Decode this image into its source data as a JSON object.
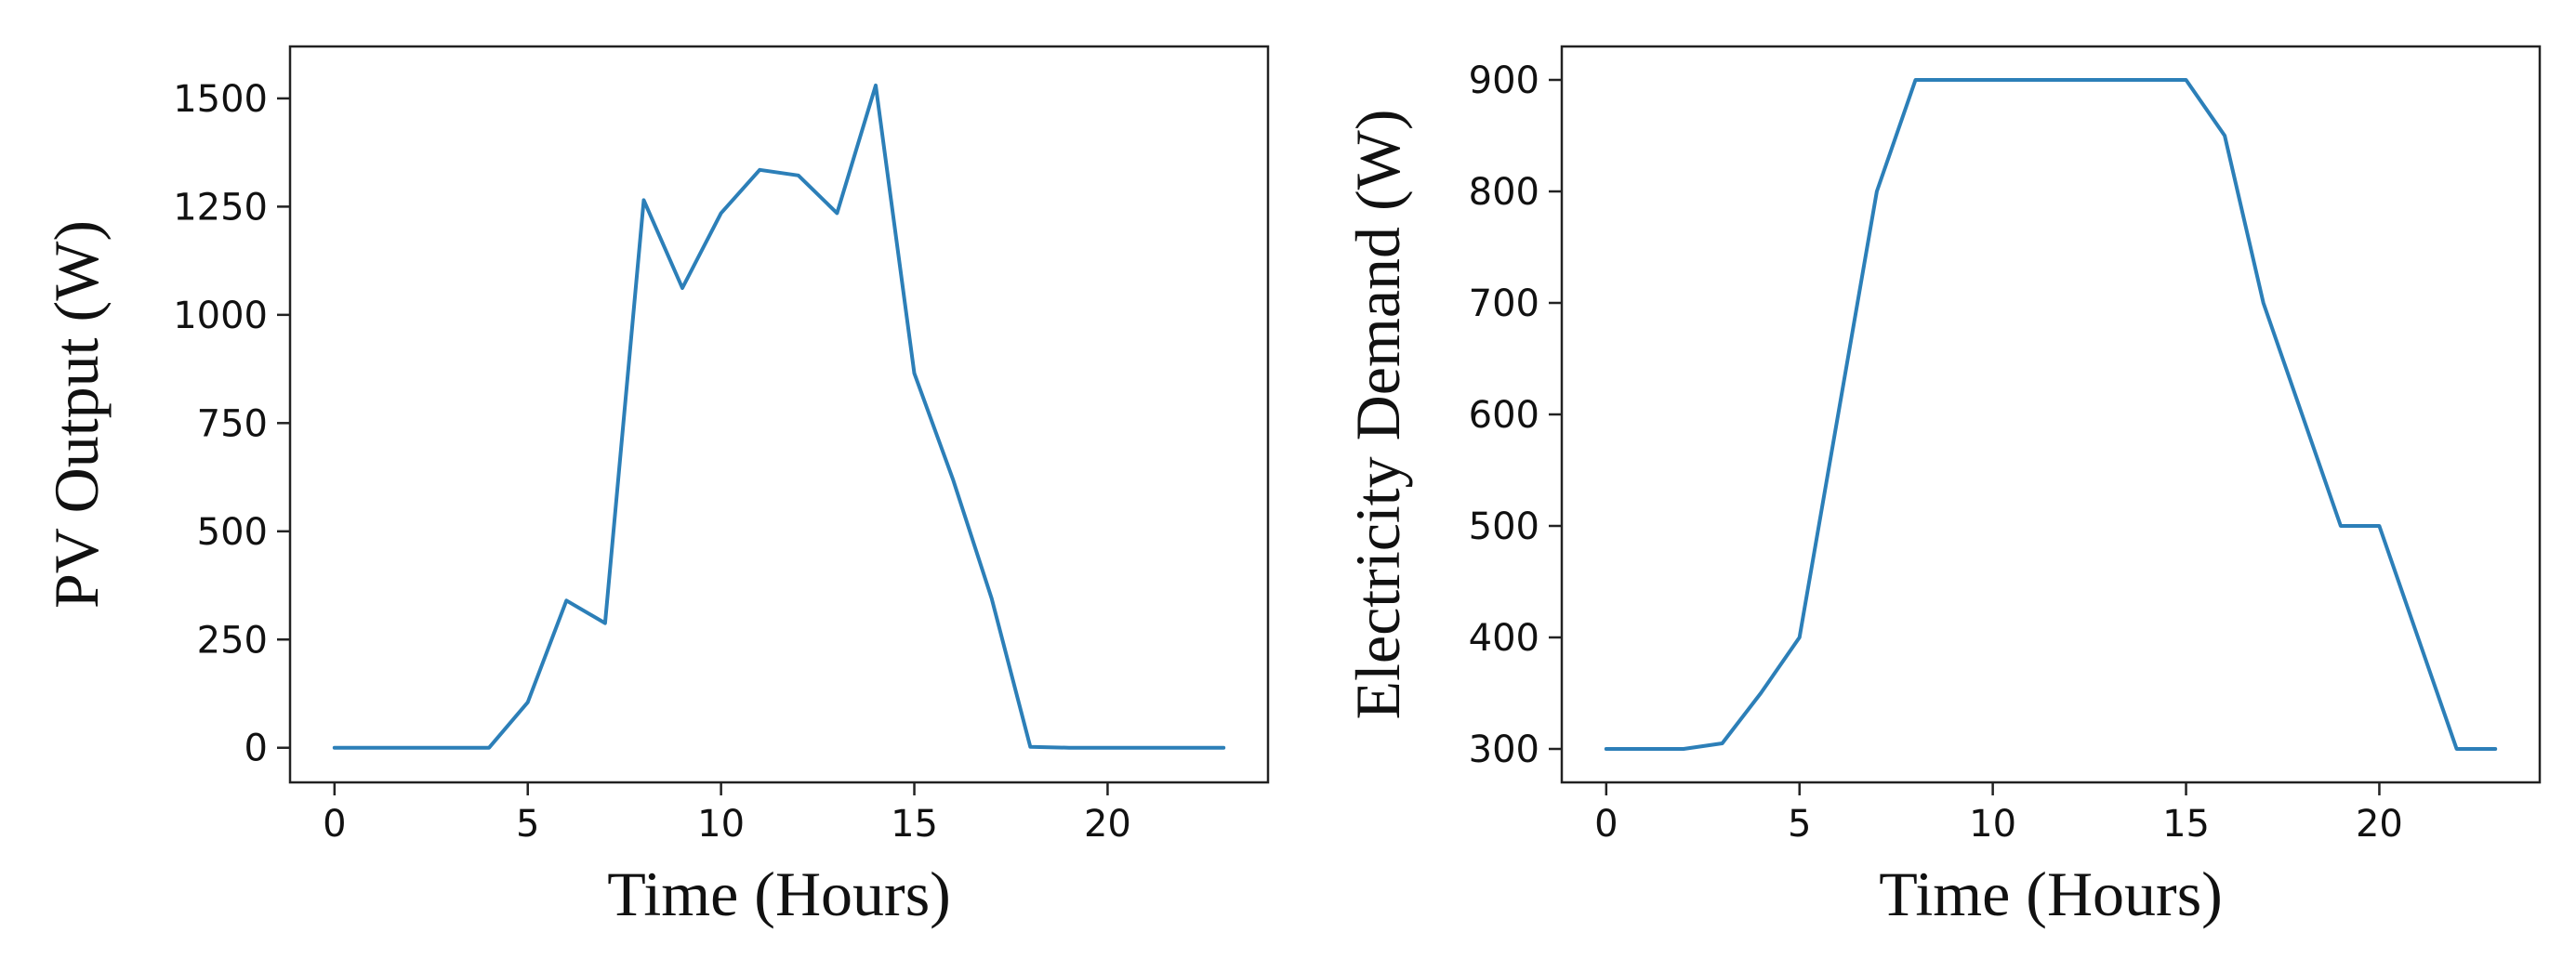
{
  "chart_data": [
    {
      "type": "line",
      "title": "",
      "xlabel": "Time (Hours)",
      "ylabel": "PV Output (W)",
      "xlim": [
        -1.15,
        24.15
      ],
      "ylim": [
        -80,
        1620
      ],
      "xticks": [
        0,
        5,
        10,
        15,
        20
      ],
      "yticks": [
        0,
        250,
        500,
        750,
        1000,
        1250,
        1500
      ],
      "grid": false,
      "color": "#2c7fb8",
      "series": [
        {
          "x": [
            0,
            1,
            2,
            3,
            4,
            5,
            6,
            7,
            8,
            9,
            10,
            11,
            12,
            13,
            14,
            15,
            16,
            17,
            18,
            19,
            20,
            21,
            22,
            23
          ],
          "values": [
            0,
            0,
            0,
            0,
            0,
            105,
            340,
            288,
            1265,
            1062,
            1235,
            1335,
            1322,
            1235,
            1530,
            865,
            620,
            345,
            2,
            0,
            0,
            0,
            0,
            0
          ]
        }
      ]
    },
    {
      "type": "line",
      "title": "",
      "xlabel": "Time (Hours)",
      "ylabel": "Electricity Demand (W)",
      "xlim": [
        -1.15,
        24.15
      ],
      "ylim": [
        270,
        930
      ],
      "xticks": [
        0,
        5,
        10,
        15,
        20
      ],
      "yticks": [
        300,
        400,
        500,
        600,
        700,
        800,
        900
      ],
      "grid": false,
      "color": "#2c7fb8",
      "series": [
        {
          "x": [
            0,
            1,
            2,
            3,
            4,
            5,
            6,
            7,
            8,
            9,
            10,
            11,
            12,
            13,
            14,
            15,
            16,
            17,
            18,
            19,
            20,
            21,
            22,
            23
          ],
          "values": [
            300,
            300,
            300,
            305,
            350,
            400,
            600,
            800,
            900,
            900,
            900,
            900,
            900,
            900,
            900,
            900,
            850,
            700,
            600,
            500,
            500,
            400,
            300,
            300
          ]
        }
      ]
    }
  ]
}
